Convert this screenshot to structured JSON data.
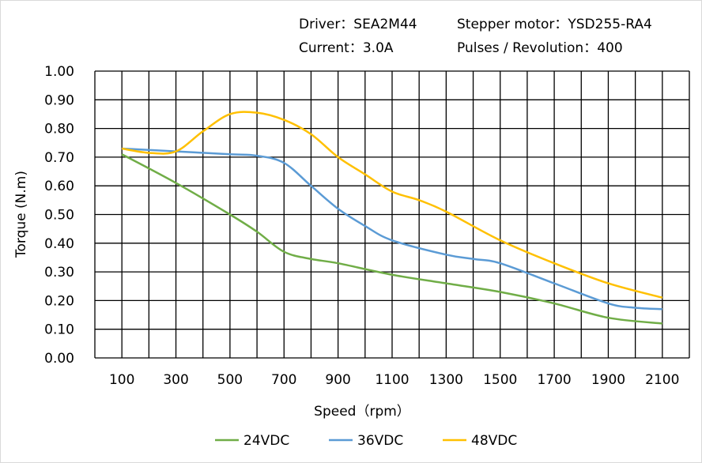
{
  "header": {
    "driver": "Driver：SEA2M44",
    "motor": "Stepper  motor：YSD255-RA4",
    "current": "Current：3.0A",
    "pulses": "Pulses / Revolution：400"
  },
  "chart_data": {
    "type": "line",
    "title": "",
    "xlabel": "Speed（rpm）",
    "ylabel": "Torque (N.m)",
    "xlim": [
      0,
      2200
    ],
    "ylim": [
      0,
      1.0
    ],
    "grid": true,
    "legend": "bottom",
    "x_ticks": [
      "100",
      "300",
      "500",
      "700",
      "900",
      "1100",
      "1300",
      "1500",
      "1700",
      "1900",
      "2100"
    ],
    "y_ticks": [
      "0.00",
      "0.10",
      "0.20",
      "0.30",
      "0.40",
      "0.50",
      "0.60",
      "0.70",
      "0.80",
      "0.90",
      "1.00"
    ],
    "series": [
      {
        "name": "24VDC",
        "color": "#70AD47",
        "x": [
          100,
          300,
          500,
          600,
          700,
          800,
          900,
          1100,
          1300,
          1500,
          1700,
          1900,
          2100
        ],
        "y": [
          0.71,
          0.61,
          0.5,
          0.44,
          0.37,
          0.345,
          0.33,
          0.29,
          0.26,
          0.23,
          0.19,
          0.14,
          0.12
        ]
      },
      {
        "name": "36VDC",
        "color": "#5B9BD5",
        "x": [
          100,
          300,
          500,
          600,
          700,
          800,
          900,
          1000,
          1100,
          1300,
          1400,
          1500,
          1700,
          1900,
          2000,
          2100
        ],
        "y": [
          0.73,
          0.72,
          0.71,
          0.705,
          0.68,
          0.6,
          0.52,
          0.46,
          0.41,
          0.36,
          0.345,
          0.33,
          0.26,
          0.19,
          0.175,
          0.17
        ]
      },
      {
        "name": "48VDC",
        "color": "#FFC000",
        "x": [
          100,
          200,
          300,
          400,
          500,
          600,
          700,
          800,
          900,
          1000,
          1100,
          1200,
          1300,
          1500,
          1700,
          1900,
          2100
        ],
        "y": [
          0.73,
          0.715,
          0.72,
          0.79,
          0.85,
          0.855,
          0.83,
          0.78,
          0.7,
          0.64,
          0.58,
          0.55,
          0.51,
          0.41,
          0.33,
          0.26,
          0.21
        ]
      }
    ]
  }
}
